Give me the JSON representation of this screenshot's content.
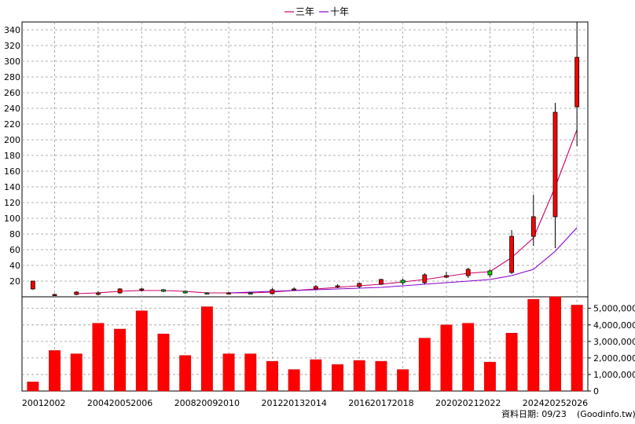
{
  "chart_data": {
    "type": "candlestick",
    "legend": [
      {
        "name": "三年",
        "color": "#cc0066"
      },
      {
        "name": "十年",
        "color": "#8800cc"
      }
    ],
    "legend_position": "top-center",
    "grid": true,
    "price_axis": {
      "ticks": [
        20,
        40,
        60,
        80,
        100,
        120,
        140,
        160,
        180,
        200,
        220,
        240,
        260,
        280,
        300,
        320,
        340
      ],
      "range": [
        0,
        350
      ]
    },
    "volume_axis": {
      "ticks": [
        "0",
        "1,000,000",
        "2,000,000",
        "3,000,000",
        "4,000,000",
        "5,000,000"
      ],
      "range": [
        0,
        5700000
      ]
    },
    "x_labels": [
      "2001",
      "2002",
      "2004",
      "2005",
      "2006",
      "2008",
      "2009",
      "2010",
      "2012",
      "2013",
      "2014",
      "2016",
      "2017",
      "2018",
      "2020",
      "2021",
      "2022",
      "2024",
      "2025",
      "2026"
    ],
    "candles": [
      {
        "i": 0,
        "open": 10,
        "close": 20,
        "high": 20,
        "low": 9
      },
      {
        "i": 1,
        "open": 2,
        "close": 3,
        "high": 4,
        "low": 1
      },
      {
        "i": 2,
        "open": 3,
        "close": 6,
        "high": 7,
        "low": 2
      },
      {
        "i": 3,
        "open": 3,
        "close": 5,
        "high": 7,
        "low": 2
      },
      {
        "i": 4,
        "open": 5,
        "close": 10,
        "high": 11,
        "low": 4
      },
      {
        "i": 5,
        "open": 9,
        "close": 10,
        "high": 11,
        "low": 7
      },
      {
        "i": 6,
        "open": 9,
        "close": 7,
        "high": 10,
        "low": 6
      },
      {
        "i": 7,
        "open": 7,
        "close": 5,
        "high": 8,
        "low": 4
      },
      {
        "i": 8,
        "open": 5,
        "close": 4,
        "high": 6,
        "low": 3
      },
      {
        "i": 9,
        "open": 4,
        "close": 5,
        "high": 6,
        "low": 3
      },
      {
        "i": 10,
        "open": 5,
        "close": 4,
        "high": 6,
        "low": 3
      },
      {
        "i": 11,
        "open": 4,
        "close": 9,
        "high": 11,
        "low": 3
      },
      {
        "i": 12,
        "open": 9,
        "close": 10,
        "high": 12,
        "low": 8
      },
      {
        "i": 13,
        "open": 10,
        "close": 13,
        "high": 15,
        "low": 9
      },
      {
        "i": 14,
        "open": 13,
        "close": 14,
        "high": 16,
        "low": 11
      },
      {
        "i": 15,
        "open": 13,
        "close": 17,
        "high": 18,
        "low": 11
      },
      {
        "i": 16,
        "open": 16,
        "close": 22,
        "high": 23,
        "low": 15
      },
      {
        "i": 17,
        "open": 21,
        "close": 18,
        "high": 23,
        "low": 15
      },
      {
        "i": 18,
        "open": 18,
        "close": 28,
        "high": 30,
        "low": 16
      },
      {
        "i": 19,
        "open": 25,
        "close": 27,
        "high": 32,
        "low": 24
      },
      {
        "i": 20,
        "open": 27,
        "close": 35,
        "high": 37,
        "low": 24
      },
      {
        "i": 21,
        "open": 33,
        "close": 28,
        "high": 35,
        "low": 25
      },
      {
        "i": 22,
        "open": 31,
        "close": 77,
        "high": 85,
        "low": 29
      },
      {
        "i": 23,
        "open": 77,
        "close": 102,
        "high": 130,
        "low": 65
      },
      {
        "i": 24,
        "open": 102,
        "close": 235,
        "high": 247,
        "low": 62
      },
      {
        "i": 25,
        "open": 242,
        "close": 305,
        "high": 350,
        "low": 192
      }
    ],
    "series": [
      {
        "name": "三年",
        "values": [
          null,
          null,
          4,
          5,
          7,
          8,
          8,
          7,
          5,
          5,
          5,
          6,
          8,
          10,
          12,
          14,
          16,
          19,
          22,
          26,
          30,
          32,
          50,
          75,
          140,
          213
        ]
      },
      {
        "name": "十年",
        "values": [
          null,
          null,
          null,
          null,
          null,
          null,
          null,
          null,
          null,
          5,
          6,
          7,
          8,
          9,
          10,
          11,
          12,
          14,
          16,
          18,
          20,
          22,
          27,
          35,
          58,
          88
        ]
      }
    ],
    "volume": [
      550000,
      2450000,
      2250000,
      4100000,
      3750000,
      4850000,
      3450000,
      2150000,
      5100000,
      2250000,
      2250000,
      1800000,
      1300000,
      1900000,
      1600000,
      1850000,
      1800000,
      1300000,
      3200000,
      4000000,
      4100000,
      1750000,
      3500000,
      5550000,
      5700000,
      5200000
    ]
  },
  "footer": {
    "date_label": "資料日期: 09/23",
    "source": "(Goodinfo.tw)"
  }
}
